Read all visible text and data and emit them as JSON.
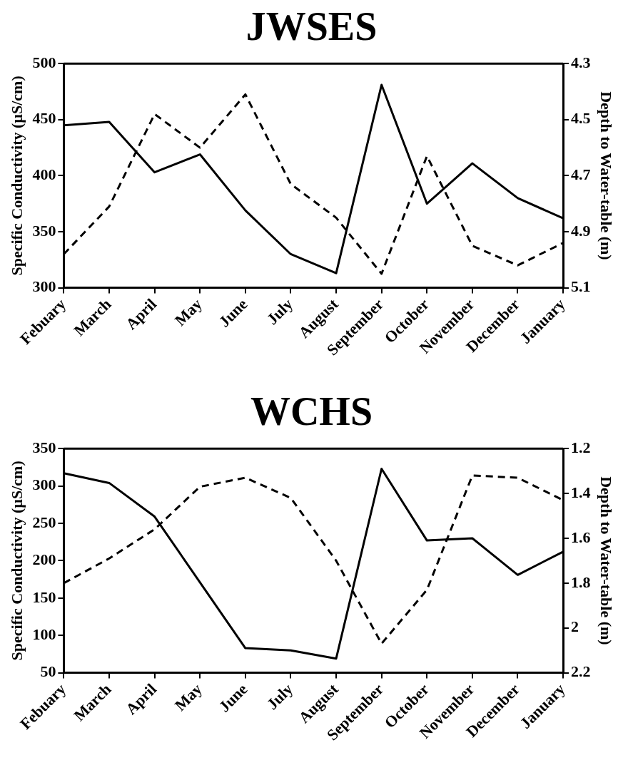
{
  "chart_data": [
    {
      "type": "line",
      "title": "JWSES",
      "ylabel": "Specific Conductivity (µS/cm)",
      "y2label": "Depth to Water-table (m)",
      "categories": [
        "Febuary",
        "March",
        "April",
        "May",
        "June",
        "July",
        "August",
        "September",
        "October",
        "November",
        "December",
        "January"
      ],
      "series": [
        {
          "color": "#000000",
          "line_style": "solid",
          "values": [
            445,
            448,
            403,
            419,
            369,
            330,
            313,
            481,
            375,
            411,
            380,
            362
          ]
        },
        {
          "color": "#000000",
          "line_style": "dashed",
          "axis": "y2",
          "values": [
            4.98,
            4.81,
            4.48,
            4.6,
            4.41,
            4.73,
            4.85,
            5.05,
            4.63,
            4.95,
            5.02,
            4.94
          ]
        }
      ],
      "ylim": [
        300,
        500
      ],
      "yticks": [
        300,
        350,
        400,
        450,
        500
      ],
      "y2lim": [
        5.1,
        4.3
      ],
      "y2ticks": [
        4.3,
        4.5,
        4.7,
        4.9,
        5.1
      ],
      "grid": false,
      "legend": false,
      "marker": "none"
    },
    {
      "type": "line",
      "title": "WCHS",
      "ylabel": "Specific Conductivity (µS/cm)",
      "y2label": "Depth to Water-table (m)",
      "categories": [
        "Febuary",
        "March",
        "April",
        "May",
        "June",
        "July",
        "August",
        "September",
        "October",
        "November",
        "December",
        "January"
      ],
      "series": [
        {
          "color": "#000000",
          "line_style": "solid",
          "values": [
            317,
            304,
            259,
            171,
            83,
            80,
            69,
            323,
            227,
            230,
            181,
            212
          ]
        },
        {
          "color": "#000000",
          "line_style": "dashed",
          "axis": "y2",
          "values": [
            1.8,
            1.69,
            1.56,
            1.37,
            1.33,
            1.42,
            1.7,
            2.07,
            1.83,
            1.32,
            1.33,
            1.43
          ]
        }
      ],
      "ylim": [
        50,
        350
      ],
      "yticks": [
        50,
        100,
        150,
        200,
        250,
        300,
        350
      ],
      "y2lim": [
        2.2,
        1.2
      ],
      "y2ticks": [
        1.2,
        1.4,
        1.6,
        1.8,
        2,
        2.2
      ],
      "grid": false,
      "legend": false,
      "marker": "none"
    }
  ]
}
